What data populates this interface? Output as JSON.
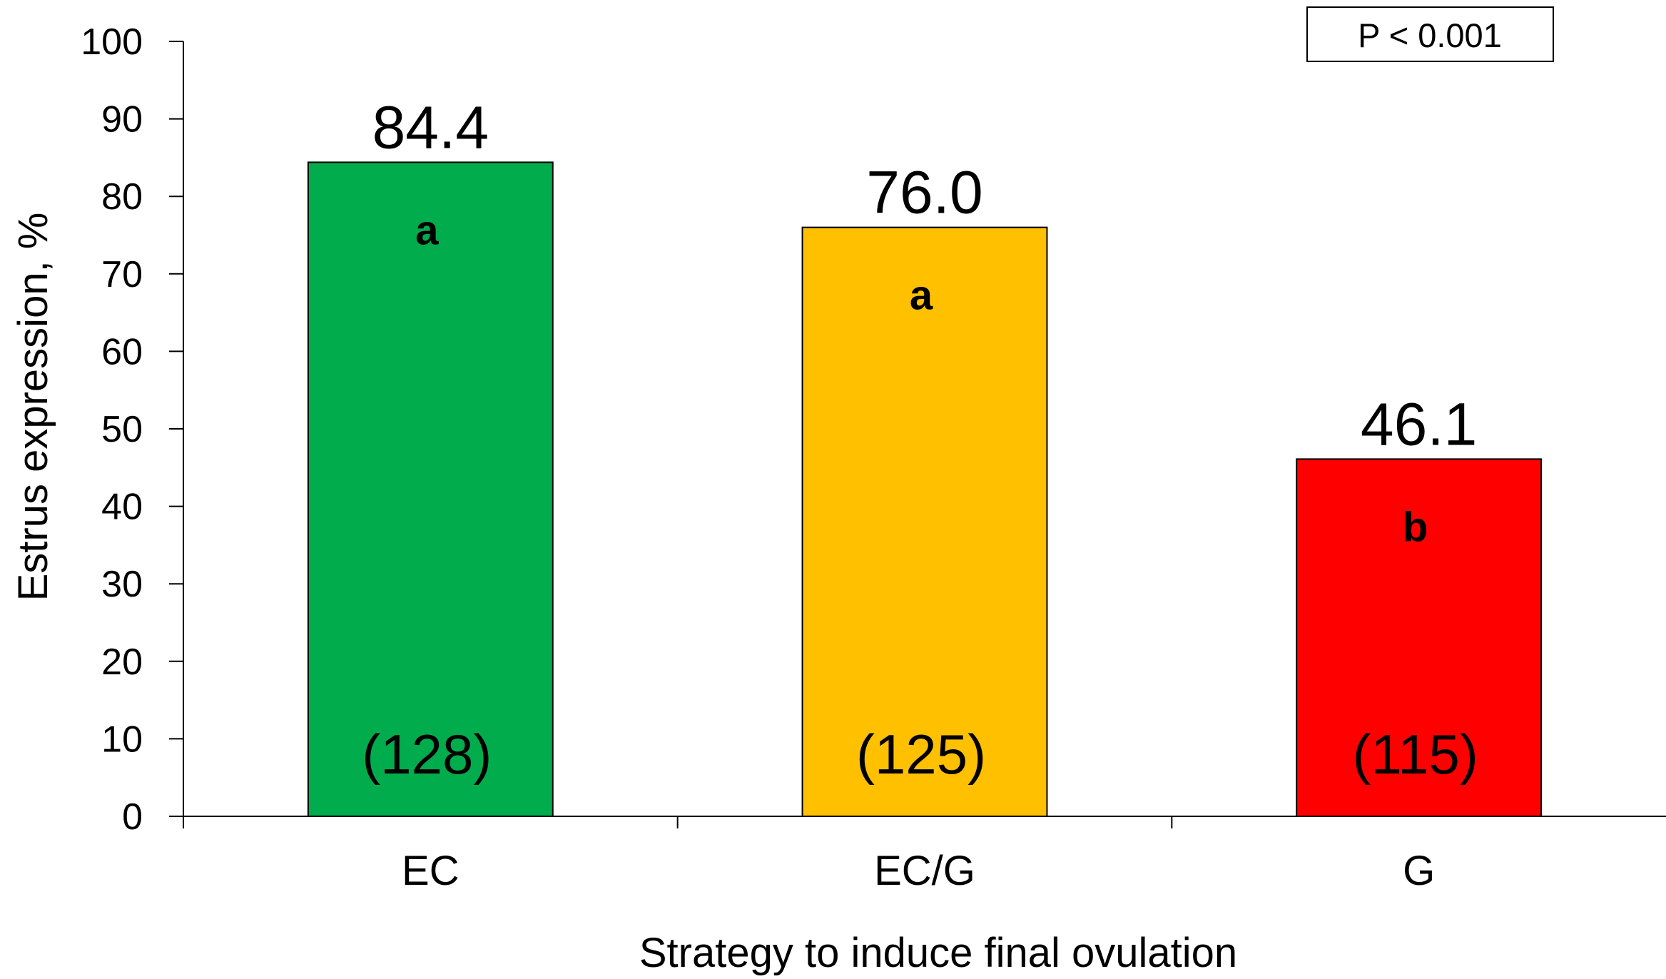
{
  "chart_data": {
    "type": "bar",
    "categories": [
      "EC",
      "EC/G",
      "G"
    ],
    "values": [
      84.4,
      76.0,
      46.1
    ],
    "value_labels": [
      "84.4",
      "76.0",
      "46.1"
    ],
    "significance_letters": [
      "a",
      "a",
      "b"
    ],
    "sample_sizes": [
      "(128)",
      "(125)",
      "(115)"
    ],
    "bar_colors": [
      "#00ac4c",
      "#ffc000",
      "#ff0000"
    ],
    "xlabel": "Strategy to induce final ovulation",
    "ylabel": "Estrus expression, %",
    "ylim": [
      0,
      100
    ],
    "yticks": [
      0,
      10,
      20,
      30,
      40,
      50,
      60,
      70,
      80,
      90,
      100
    ],
    "annotation": "P < 0.001",
    "annotation_placement": "top-right",
    "grid": false,
    "legend": false
  }
}
